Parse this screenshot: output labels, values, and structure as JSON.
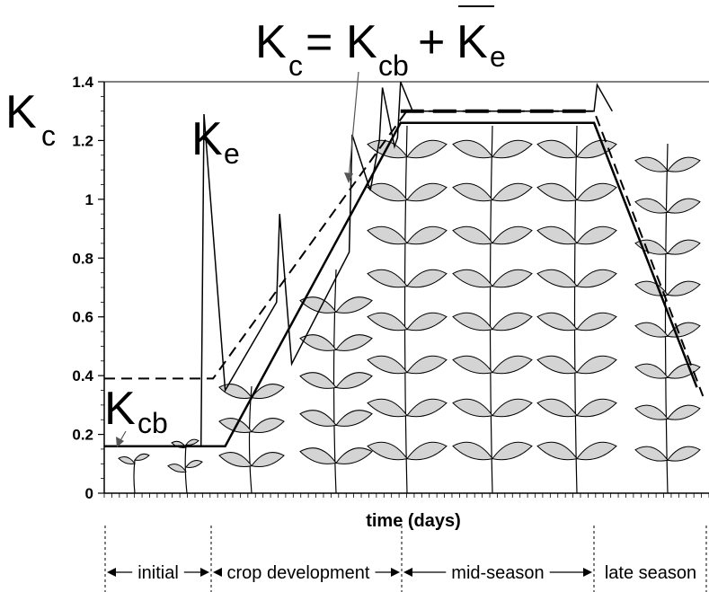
{
  "chart_data": {
    "type": "line",
    "title": "",
    "xlabel": "time (days)",
    "ylabel_main": "K",
    "ylabel_sub": "c",
    "ylim": [
      0,
      1.4
    ],
    "yticks": [
      "0",
      "0.2",
      "0.4",
      "0.6",
      "0.8",
      "1",
      "1.2",
      "1.4"
    ],
    "ytick_values": [
      0,
      0.2,
      0.4,
      0.6,
      0.8,
      1.0,
      1.2,
      1.4
    ],
    "xlim": [
      0,
      100
    ],
    "grid": false,
    "series": [
      {
        "name": "Kcb",
        "style": "solid",
        "x": [
          0,
          16,
          20,
          49,
          81,
          98
        ],
        "y": [
          0.16,
          0.16,
          0.16,
          1.26,
          1.26,
          0.36
        ]
      },
      {
        "name": "Kc = Kcb + Ke",
        "style": "dashed",
        "x": [
          0,
          18,
          50,
          81,
          99
        ],
        "y": [
          0.39,
          0.39,
          1.3,
          1.3,
          0.33
        ]
      },
      {
        "name": "Ke",
        "style": "solid-thin",
        "x": [
          16,
          16.5,
          20,
          28.5,
          29,
          31,
          40.5,
          41,
          44,
          45.5,
          46,
          48,
          48.5,
          49,
          51,
          81,
          81.5,
          84
        ],
        "y": [
          0.16,
          1.29,
          0.35,
          0.65,
          0.95,
          0.44,
          0.82,
          1.22,
          1.03,
          1.2,
          1.38,
          1.18,
          1.21,
          1.4,
          1.3,
          1.3,
          1.39,
          1.3
        ]
      }
    ],
    "annotations": {
      "equation_lhs_main": "K",
      "equation_lhs_sub": "c",
      "equation_eq": "=",
      "equation_mid_main": "K",
      "equation_mid_sub": "cb",
      "equation_plus": "+",
      "equation_rhs_main": "K",
      "equation_rhs_sub": "e",
      "ke_label_main": "K",
      "ke_label_sub": "e",
      "kcb_label_main": "K",
      "kcb_label_sub": "cb"
    },
    "stages": [
      {
        "label": "initial",
        "start": 0,
        "end": 22
      },
      {
        "label": "crop development",
        "start": 22,
        "end": 61
      },
      {
        "label": "mid-season",
        "start": 61,
        "end": 83
      },
      {
        "label": "late season",
        "start": 83,
        "end": 100
      }
    ]
  }
}
